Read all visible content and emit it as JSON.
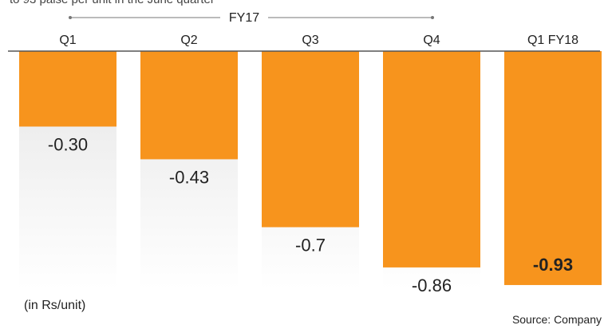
{
  "caption": "to 93 paise per unit in the June quarter",
  "chart_data": {
    "type": "bar",
    "group_label": "FY17",
    "categories": [
      "Q1",
      "Q2",
      "Q3",
      "Q4",
      "Q1 FY18"
    ],
    "values": [
      -0.3,
      -0.43,
      -0.7,
      -0.86,
      -0.93
    ],
    "value_labels": [
      "-0.30",
      "-0.43",
      "-0.7",
      "-0.86",
      "-0.93"
    ],
    "highlight_index": 4,
    "ylim": [
      -1.0,
      0
    ],
    "unit_note": "(in Rs/unit)",
    "source": "Source: Company",
    "colors": {
      "bar": "#f7941d",
      "track": "#ebebeb",
      "text": "#222222",
      "axis": "#555555"
    }
  }
}
